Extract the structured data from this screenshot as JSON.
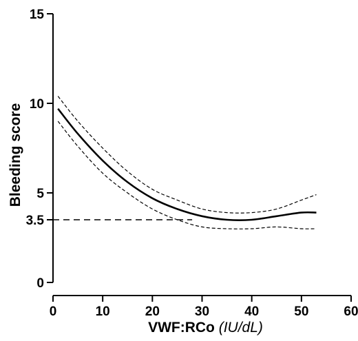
{
  "chart_data": {
    "type": "line",
    "xlabel": "VWF:RCo",
    "xlabel_unit": "(IU/dL)",
    "ylabel": "Bleeding score",
    "xlim": [
      0,
      60
    ],
    "ylim": [
      0,
      15
    ],
    "x_ticks": [
      0,
      10,
      20,
      30,
      40,
      50,
      60
    ],
    "y_ticks": [
      0,
      3.5,
      5,
      10,
      15
    ],
    "y_tick_labels": [
      "0",
      "3.5",
      "5",
      "10",
      "15"
    ],
    "grid": false,
    "reference_line": {
      "y": 3.5,
      "x_range": [
        0,
        28
      ],
      "style": "dashed"
    },
    "series": [
      {
        "role": "fit",
        "style": "solid",
        "x": [
          1,
          5,
          10,
          15,
          20,
          25,
          30,
          35,
          40,
          45,
          50,
          53
        ],
        "y": [
          9.7,
          8.3,
          6.8,
          5.6,
          4.7,
          4.1,
          3.7,
          3.5,
          3.5,
          3.7,
          3.9,
          3.9
        ]
      },
      {
        "role": "upper-bound",
        "style": "dashed",
        "x": [
          1,
          5,
          10,
          15,
          20,
          25,
          30,
          35,
          40,
          45,
          50,
          53
        ],
        "y": [
          10.4,
          9.0,
          7.5,
          6.2,
          5.2,
          4.6,
          4.1,
          3.9,
          3.9,
          4.1,
          4.6,
          4.9
        ]
      },
      {
        "role": "lower-bound",
        "style": "dashed",
        "x": [
          1,
          5,
          10,
          15,
          20,
          25,
          30,
          35,
          40,
          45,
          50,
          53
        ],
        "y": [
          9.0,
          7.6,
          6.1,
          5.0,
          4.1,
          3.5,
          3.1,
          3.0,
          3.0,
          3.1,
          3.0,
          3.0
        ]
      }
    ]
  }
}
